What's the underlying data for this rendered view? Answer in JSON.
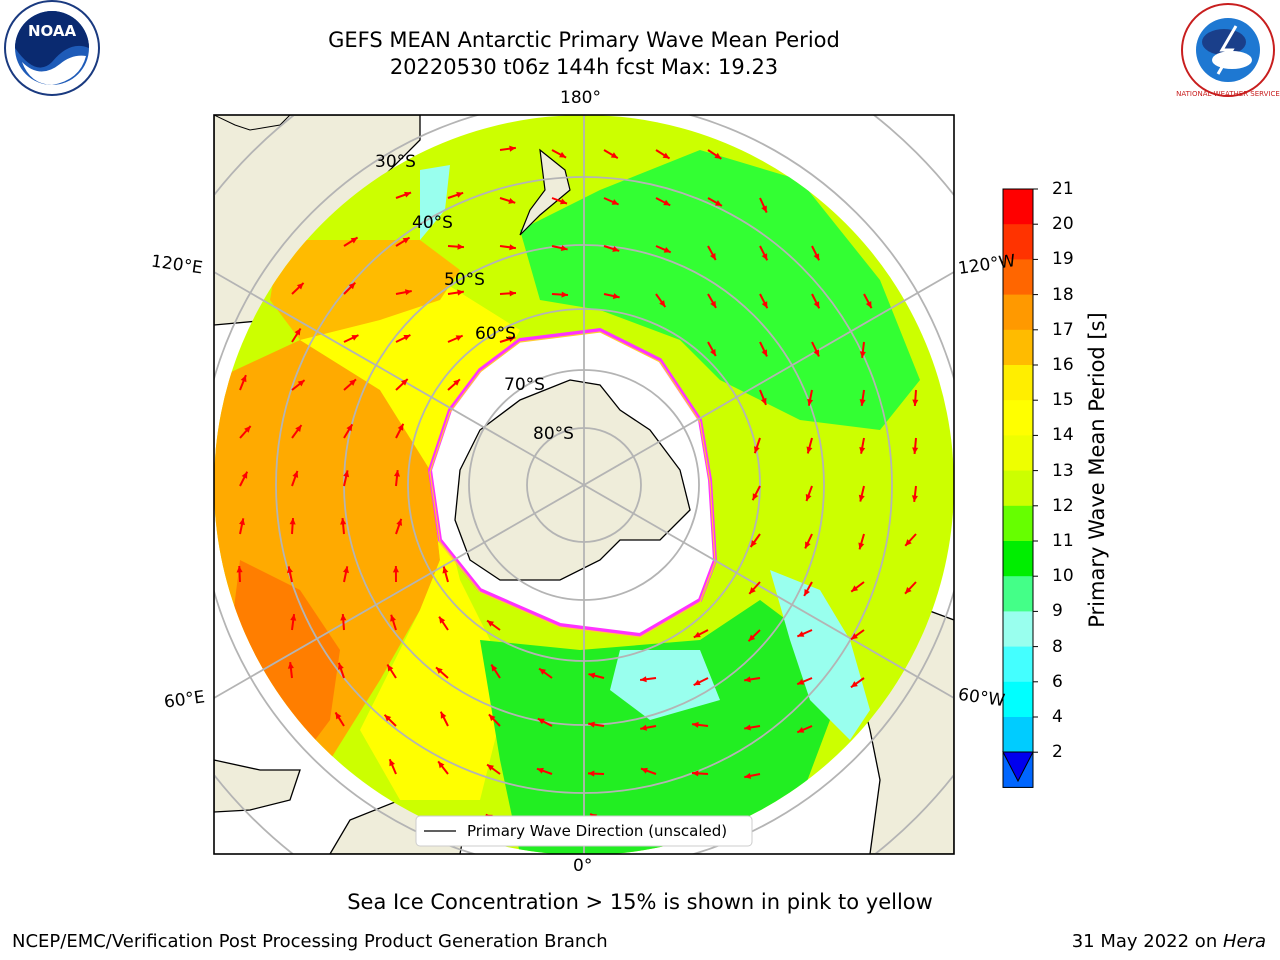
{
  "title": {
    "line1": "GEFS MEAN Antarctic Primary Wave Mean Period",
    "line2": "20220530 t06z 144h fcst   Max: 19.23"
  },
  "logos": {
    "left": "noaa-logo",
    "right": "nws-logo",
    "left_text": "NOAA",
    "right_text": "NATIONAL WEATHER SERVICE"
  },
  "map": {
    "projection": "south-polar-stereographic",
    "longitude_labels": {
      "top": "180°",
      "bottom": "0°",
      "upper_left": "120°E",
      "upper_right": "120°W",
      "lower_left": "60°E",
      "lower_right": "60°W"
    },
    "latitude_labels": [
      "30°S",
      "40°S",
      "50°S",
      "60°S",
      "70°S",
      "80°S"
    ],
    "legend": "Primary Wave Direction (unscaled)",
    "colors": {
      "ocean_high": "#ff7f00",
      "ocean_mid": "#ffff00",
      "ocean_low": "#00ff00",
      "land": "#efedda",
      "ice_edge": "#ff33ff",
      "arrow": "#ff0000",
      "grid": "#b4b4b4"
    }
  },
  "colorbar": {
    "label": "Primary Wave Mean Period [s]",
    "ticks": [
      "21",
      "20",
      "19",
      "18",
      "17",
      "16",
      "15",
      "14",
      "13",
      "12",
      "11",
      "10",
      "9",
      "8",
      "6",
      "4",
      "2"
    ],
    "colors": [
      "#ff0000",
      "#ff3300",
      "#ff6600",
      "#ff9900",
      "#ffbb00",
      "#ffee00",
      "#ffff00",
      "#eeff00",
      "#ccff00",
      "#66ff00",
      "#00ee00",
      "#44ff88",
      "#99ffee",
      "#44ffff",
      "#00ffff",
      "#00ccff",
      "#0066ff"
    ],
    "extend_color": "#0000ee"
  },
  "subtitle": "Sea Ice Concentration > 15% is shown in pink to yellow",
  "footer": {
    "left": "NCEP/EMC/Verification Post Processing Product Generation Branch",
    "right_date": "31 May 2022 on ",
    "right_host": "Hera"
  }
}
